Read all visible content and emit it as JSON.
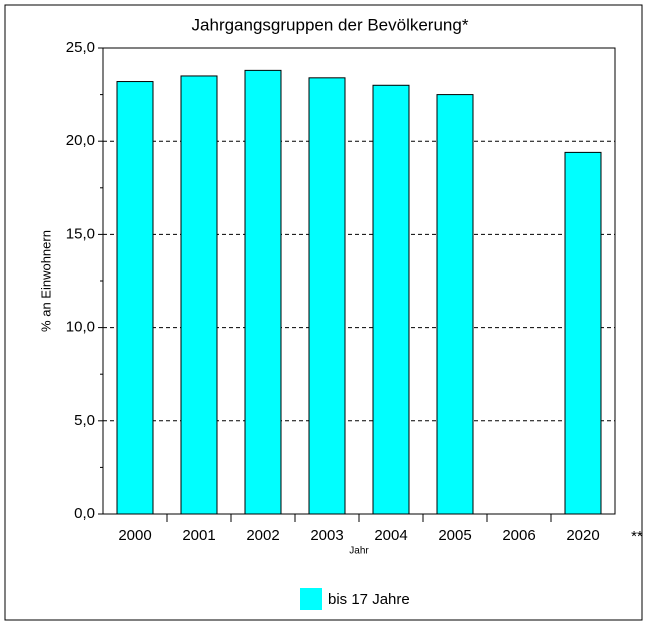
{
  "chart_data": {
    "type": "bar",
    "title": "Jahrgangsgruppen der Bevölkerung*",
    "categories": [
      "2000",
      "2001",
      "2002",
      "2003",
      "2004",
      "2005",
      "2006",
      "2020"
    ],
    "series": [
      {
        "name": "bis 17 Jahre",
        "color": "#00ffff",
        "values": [
          23.2,
          23.5,
          23.8,
          23.4,
          23.0,
          22.5,
          null,
          19.4
        ]
      }
    ],
    "ylim": [
      0,
      25
    ],
    "yticks": [
      {
        "value": 0,
        "label": "0,0"
      },
      {
        "value": 5,
        "label": "5,0"
      },
      {
        "value": 10,
        "label": "10,0"
      },
      {
        "value": 15,
        "label": "15,0"
      },
      {
        "value": 20,
        "label": "20,0"
      },
      {
        "value": 25,
        "label": "25,0"
      }
    ],
    "yminorticks": [
      2.5,
      7.5,
      12.5,
      17.5,
      22.5
    ],
    "xlabel": "Jahr",
    "ylabel": "% an Einwohnern",
    "annotation": "**",
    "grid": true,
    "legend": "bottom"
  }
}
